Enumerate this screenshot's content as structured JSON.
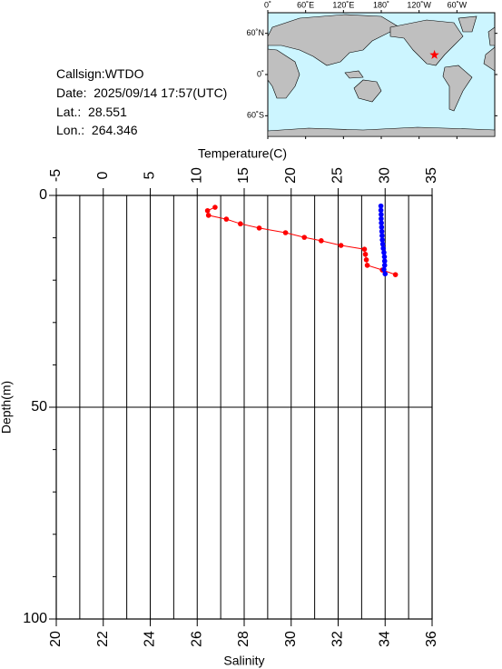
{
  "info": {
    "callsign_label": "Callsign:",
    "callsign": "WTDO",
    "date_label": "Date:  ",
    "date": "2025/09/14 17:57(UTC)",
    "lat_label": "Lat.:  ",
    "lat": 28.551,
    "lon_label": "Lon.:  ",
    "lon": 264.346
  },
  "map": {
    "lonlim": [
      0,
      360
    ],
    "latlim": [
      90,
      -90
    ],
    "lonticks": [
      {
        "value": 0,
        "label": "0˚"
      },
      {
        "value": 60,
        "label": "60˚E"
      },
      {
        "value": 120,
        "label": "120˚E"
      },
      {
        "value": 180,
        "label": "180˚"
      },
      {
        "value": 240,
        "label": "120˚W"
      },
      {
        "value": 300,
        "label": "60˚W"
      }
    ],
    "latticks": [
      {
        "value": 60,
        "label": "60˚N"
      },
      {
        "value": 0,
        "label": "0˚"
      },
      {
        "value": -60,
        "label": "60˚S"
      }
    ],
    "marker_color": "#ff0000"
  },
  "chart_data": {
    "type": "profile",
    "x_label": "Salinity",
    "x2_label": "Temperature(C)",
    "y_label": "Depth(m)",
    "xlim": [
      20,
      36
    ],
    "xticks": [
      20,
      22,
      24,
      26,
      28,
      30,
      32,
      34,
      36
    ],
    "xgrid": [
      21,
      22,
      23,
      24,
      25,
      26,
      27,
      28,
      29,
      30,
      31,
      32,
      33,
      34,
      35
    ],
    "x2lim": [
      -5,
      35
    ],
    "x2ticks": [
      -5,
      0,
      5,
      10,
      15,
      20,
      25,
      30,
      35
    ],
    "ylim": [
      0,
      100
    ],
    "yticks": [
      0,
      50,
      100
    ],
    "yminor": [
      10,
      20,
      30,
      40,
      60,
      70,
      80,
      90
    ],
    "series": [
      {
        "color": "#ff0000",
        "axis": "x2",
        "x": [
          11.9,
          11.1,
          11.2,
          13.1,
          14.6,
          16.6,
          19.4,
          21.4,
          23.2,
          25.3,
          27.8,
          27.9,
          28.0,
          28.1,
          29.7,
          31.1
        ],
        "y": [
          2.8,
          3.6,
          4.7,
          5.6,
          6.7,
          7.7,
          8.8,
          9.9,
          10.7,
          11.8,
          12.7,
          13.9,
          15.2,
          16.5,
          17.6,
          18.7
        ]
      },
      {
        "color": "#0000ff",
        "axis": "x",
        "x": [
          33.82,
          33.82,
          33.83,
          33.83,
          33.84,
          33.85,
          33.86,
          33.87,
          33.88,
          33.9,
          33.92,
          33.95,
          33.97,
          33.98,
          33.98,
          33.95,
          34.0
        ],
        "y": [
          2.5,
          3.5,
          4.5,
          5.5,
          6.5,
          7.5,
          8.5,
          9.5,
          10.5,
          11.5,
          12.5,
          13.5,
          14.5,
          15.5,
          16.5,
          17.5,
          18.5
        ]
      }
    ]
  }
}
